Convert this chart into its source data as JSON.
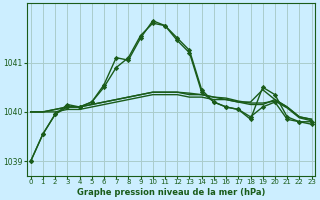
{
  "title": "Graphe pression niveau de la mer (hPa)",
  "background_color": "#cceeff",
  "grid_color": "#aacccc",
  "line_color": "#1a5c1a",
  "xlim": [
    -0.3,
    23.3
  ],
  "ylim": [
    1038.7,
    1042.2
  ],
  "yticks": [
    1039,
    1040,
    1041
  ],
  "xticks": [
    0,
    1,
    2,
    3,
    4,
    5,
    6,
    7,
    8,
    9,
    10,
    11,
    12,
    13,
    14,
    15,
    16,
    17,
    18,
    19,
    20,
    21,
    22,
    23
  ],
  "series": [
    {
      "data": [
        1039.0,
        1039.55,
        1039.95,
        1040.1,
        1040.1,
        1040.2,
        1040.55,
        1041.1,
        1041.05,
        1041.5,
        1041.85,
        1041.75,
        1041.5,
        1041.25,
        1040.45,
        1040.2,
        1040.1,
        1040.05,
        1039.85,
        1040.5,
        1040.35,
        1039.9,
        1039.8,
        1039.8
      ],
      "marker": true,
      "lw": 1.0
    },
    {
      "data": [
        1039.0,
        1039.55,
        1039.95,
        1040.15,
        1040.1,
        1040.2,
        1040.5,
        1040.9,
        1041.1,
        1041.55,
        1041.8,
        1041.75,
        1041.45,
        1041.2,
        1040.4,
        1040.2,
        1040.1,
        1040.05,
        1039.9,
        1040.1,
        1040.2,
        1039.85,
        1039.8,
        1039.75
      ],
      "marker": true,
      "lw": 1.0
    },
    {
      "data": [
        1040.0,
        1040.0,
        1040.0,
        1040.05,
        1040.05,
        1040.1,
        1040.15,
        1040.2,
        1040.25,
        1040.3,
        1040.35,
        1040.35,
        1040.35,
        1040.3,
        1040.3,
        1040.25,
        1040.25,
        1040.2,
        1040.2,
        1040.45,
        1040.25,
        1040.1,
        1039.9,
        1039.85
      ],
      "marker": false,
      "lw": 1.0
    },
    {
      "data": [
        1040.0,
        1040.0,
        1040.05,
        1040.1,
        1040.1,
        1040.15,
        1040.2,
        1040.25,
        1040.3,
        1040.35,
        1040.4,
        1040.4,
        1040.4,
        1040.35,
        1040.35,
        1040.3,
        1040.25,
        1040.2,
        1040.15,
        1040.15,
        1040.25,
        1040.1,
        1039.9,
        1039.85
      ],
      "marker": false,
      "lw": 1.0
    },
    {
      "data": [
        1040.0,
        1040.0,
        1040.05,
        1040.1,
        1040.1,
        1040.15,
        1040.2,
        1040.25,
        1040.3,
        1040.35,
        1040.4,
        1040.4,
        1040.4,
        1040.38,
        1040.35,
        1040.3,
        1040.28,
        1040.22,
        1040.18,
        1040.18,
        1040.22,
        1040.08,
        1039.88,
        1039.82
      ],
      "marker": false,
      "lw": 1.0
    }
  ]
}
